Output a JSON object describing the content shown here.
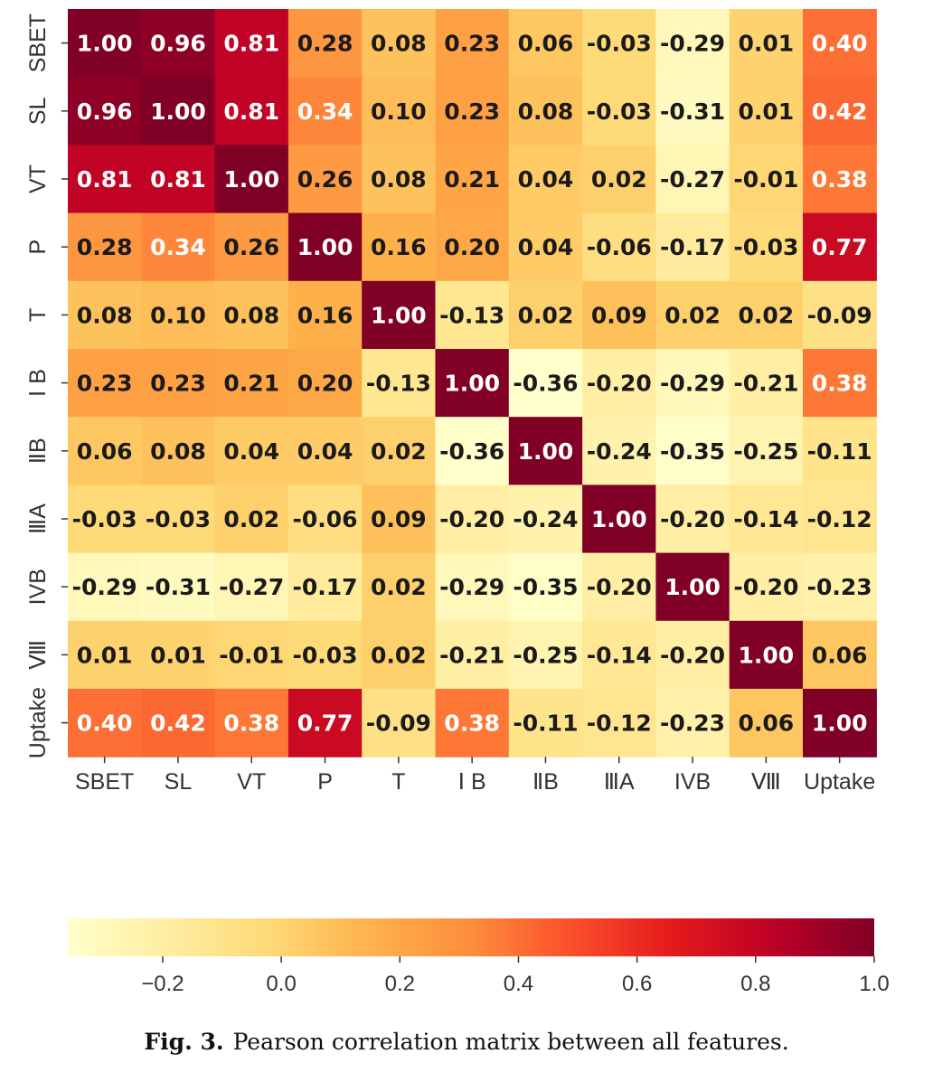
{
  "chart_data": {
    "type": "heatmap",
    "title": "",
    "labels": [
      "SBET",
      "SL",
      "VT",
      "P",
      "T",
      "Ⅰ B",
      "ⅡB",
      "ⅢA",
      "IVB",
      "Ⅷ",
      "Uptake"
    ],
    "values": [
      [
        1.0,
        0.96,
        0.81,
        0.28,
        0.08,
        0.23,
        0.06,
        -0.03,
        -0.29,
        0.01,
        0.4
      ],
      [
        0.96,
        1.0,
        0.81,
        0.34,
        0.1,
        0.23,
        0.08,
        -0.03,
        -0.31,
        0.01,
        0.42
      ],
      [
        0.81,
        0.81,
        1.0,
        0.26,
        0.08,
        0.21,
        0.04,
        0.02,
        -0.27,
        -0.01,
        0.38
      ],
      [
        0.28,
        0.34,
        0.26,
        1.0,
        0.16,
        0.2,
        0.04,
        -0.06,
        -0.17,
        -0.03,
        0.77
      ],
      [
        0.08,
        0.1,
        0.08,
        0.16,
        1.0,
        -0.13,
        0.02,
        0.09,
        0.02,
        0.02,
        -0.09
      ],
      [
        0.23,
        0.23,
        0.21,
        0.2,
        -0.13,
        1.0,
        -0.36,
        -0.2,
        -0.29,
        -0.21,
        0.38
      ],
      [
        0.06,
        0.08,
        0.04,
        0.04,
        0.02,
        -0.36,
        1.0,
        -0.24,
        -0.35,
        -0.25,
        -0.11
      ],
      [
        -0.03,
        -0.03,
        0.02,
        -0.06,
        0.09,
        -0.2,
        -0.24,
        1.0,
        -0.2,
        -0.14,
        -0.12
      ],
      [
        -0.29,
        -0.31,
        -0.27,
        -0.17,
        0.02,
        -0.29,
        -0.35,
        -0.2,
        1.0,
        -0.2,
        -0.23
      ],
      [
        0.01,
        0.01,
        -0.01,
        -0.03,
        0.02,
        -0.21,
        -0.25,
        -0.14,
        -0.2,
        1.0,
        0.06
      ],
      [
        0.4,
        0.42,
        0.38,
        0.77,
        -0.09,
        0.38,
        -0.11,
        -0.12,
        -0.23,
        0.06,
        1.0
      ]
    ],
    "colorscale": "YlOrRd",
    "colorbar": {
      "min": -0.36,
      "max": 1.0,
      "ticks": [
        -0.2,
        0.0,
        0.2,
        0.4,
        0.6,
        0.8,
        1.0
      ],
      "tick_labels": [
        "−0.2",
        "0.0",
        "0.2",
        "0.4",
        "0.6",
        "0.8",
        "1.0"
      ],
      "orientation": "horizontal"
    }
  },
  "caption": {
    "figure_number": "Fig. 3.",
    "text": "Pearson correlation matrix between all features."
  }
}
